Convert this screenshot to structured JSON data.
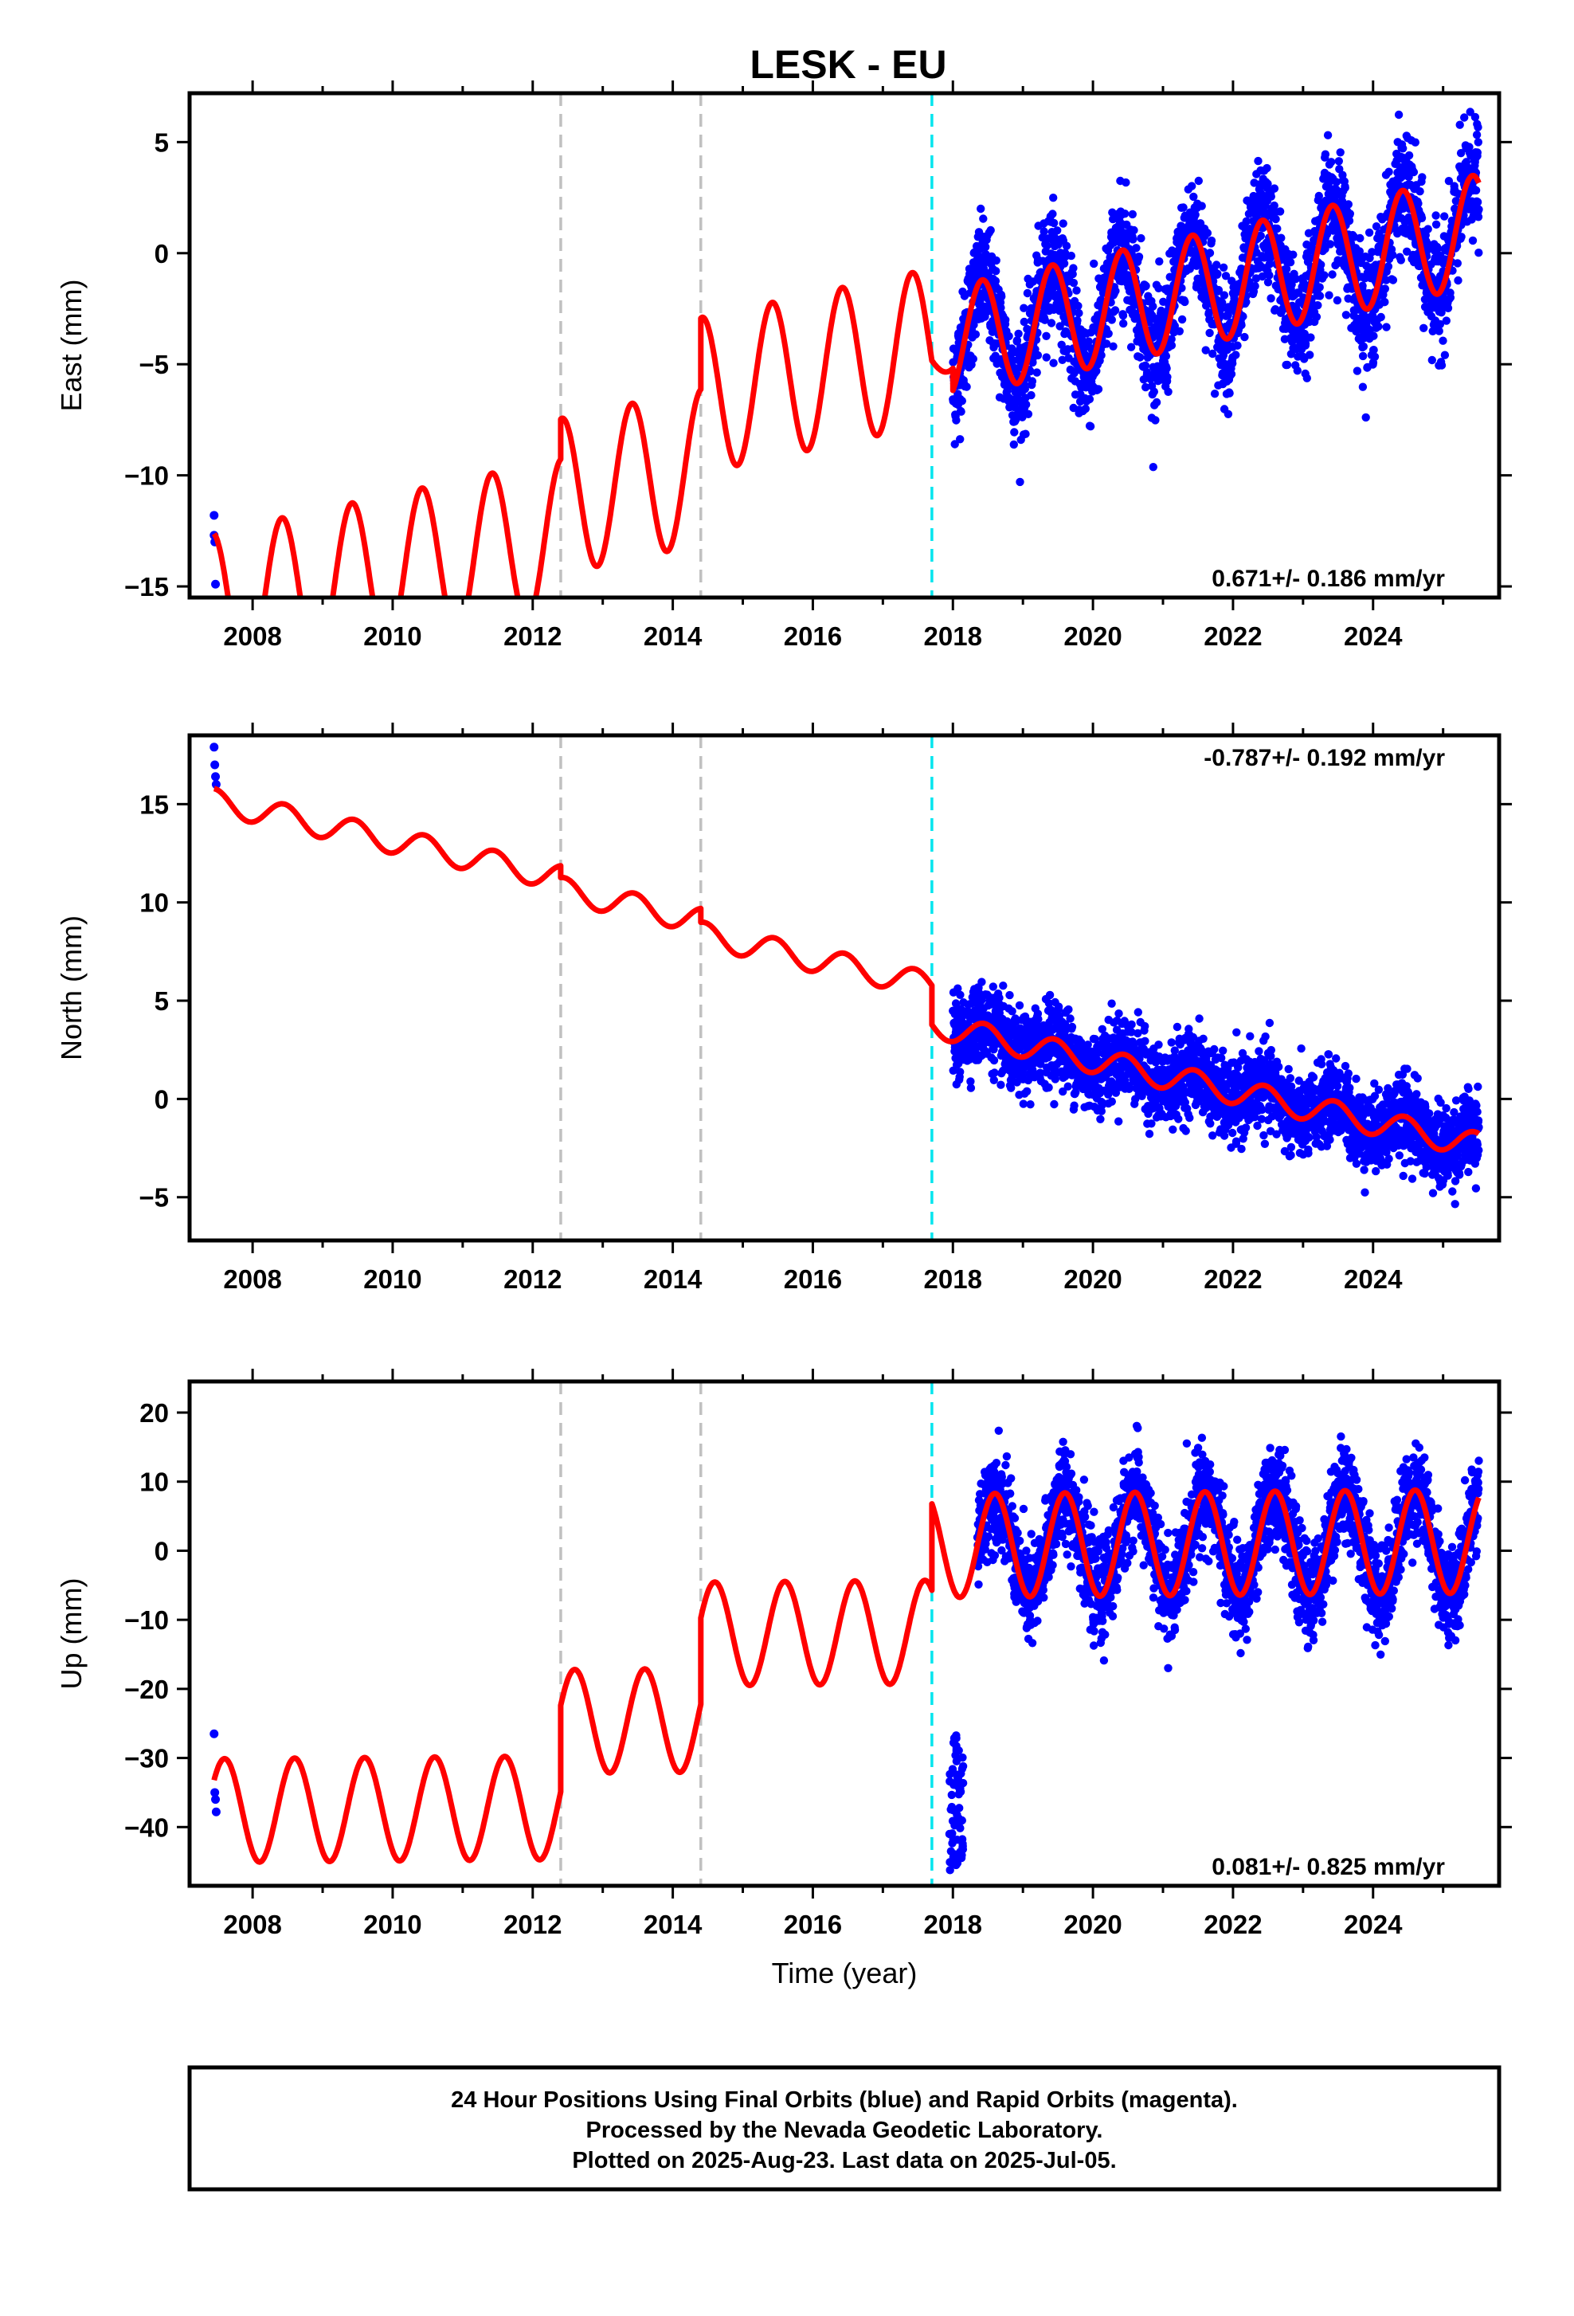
{
  "title": "LESK - EU",
  "colors": {
    "final_orbits": "#0000ff",
    "model": "#ff0000",
    "equipment_change": "#c0c0c0",
    "earthquake": "#00e5ee"
  },
  "footer": {
    "line1": "24 Hour Positions Using Final Orbits (blue) and Rapid Orbits (magenta).",
    "line2": "Processed by the Nevada Geodetic Laboratory.",
    "line3": "Plotted on 2025-Aug-23. Last data on 2025-Jul-05."
  },
  "chart_data": [
    {
      "type": "scatter",
      "component": "east",
      "ylabel": "East (mm)",
      "xlabel": "",
      "xlim": [
        2007.1,
        2025.8
      ],
      "ylim": [
        -15.5,
        7.2
      ],
      "xticks": [
        2008,
        2010,
        2012,
        2014,
        2016,
        2018,
        2020,
        2022,
        2024
      ],
      "yticks": [
        -15,
        -10,
        -5,
        0,
        5
      ],
      "ytick_labels": [
        "−15",
        "−10",
        "−5",
        "0",
        "5"
      ],
      "rate_label": "0.671+/- 0.186 mm/yr",
      "rate_position": "bottom-right",
      "grid": false,
      "vlines": [
        {
          "x": 2012.4,
          "kind": "equipment_change"
        },
        {
          "x": 2014.4,
          "kind": "earthquake_gray"
        },
        {
          "x": 2017.7,
          "kind": "earthquake"
        }
      ],
      "data_range": {
        "start": 2018.0,
        "end": 2025.51
      },
      "early_points": {
        "x": [
          2007.45,
          2007.45,
          2007.46,
          2007.47
        ],
        "y": [
          -11.8,
          -12.7,
          -13.0,
          -14.9
        ]
      },
      "model_segments": [
        {
          "start": 2007.45,
          "end": 2012.4,
          "intercept_2015": -11.0,
          "slope": 0.671,
          "amplitude": 3.5,
          "phase_peak": 0.42
        },
        {
          "start": 2012.4,
          "end": 2014.4,
          "intercept_2015": -9.2,
          "slope": 0.671,
          "amplitude": 3.5,
          "phase_peak": 0.42
        },
        {
          "start": 2014.4,
          "end": 2017.7,
          "intercept_2015": -6.0,
          "slope": 0.671,
          "amplitude": 3.5,
          "phase_peak": 0.42
        },
        {
          "start": 2017.7,
          "end": 2018.0,
          "intercept_2015": -6.5,
          "slope": 0.671,
          "amplitude": 0.8,
          "phase_peak": 0.42
        },
        {
          "start": 2018.0,
          "end": 2025.51,
          "intercept_2015": -6.0,
          "slope": 0.671,
          "amplitude": 2.5,
          "phase_peak": 0.42
        }
      ],
      "scatter_noise": 1.3
    },
    {
      "type": "scatter",
      "component": "north",
      "ylabel": "North (mm)",
      "xlabel": "",
      "xlim": [
        2007.1,
        2025.8
      ],
      "ylim": [
        -7.2,
        18.5
      ],
      "xticks": [
        2008,
        2010,
        2012,
        2014,
        2016,
        2018,
        2020,
        2022,
        2024
      ],
      "yticks": [
        -5,
        0,
        5,
        10,
        15
      ],
      "ytick_labels": [
        "−5",
        "0",
        "5",
        "10",
        "15"
      ],
      "rate_label": "-0.787+/- 0.192 mm/yr",
      "rate_position": "top-right",
      "grid": false,
      "vlines": [
        {
          "x": 2012.4,
          "kind": "equipment_change"
        },
        {
          "x": 2014.4,
          "kind": "earthquake_gray"
        },
        {
          "x": 2017.7,
          "kind": "earthquake"
        }
      ],
      "data_range": {
        "start": 2018.0,
        "end": 2025.51
      },
      "early_points": {
        "x": [
          2007.45,
          2007.46,
          2007.47,
          2007.48
        ],
        "y": [
          17.9,
          17.0,
          16.4,
          16.0
        ]
      },
      "model_segments": [
        {
          "start": 2007.45,
          "end": 2012.4,
          "intercept_2015": 9.2,
          "slope": -0.787,
          "amplitude": 0.65,
          "phase_peak": 0.45
        },
        {
          "start": 2012.4,
          "end": 2014.4,
          "intercept_2015": 8.6,
          "slope": -0.787,
          "amplitude": 0.65,
          "phase_peak": 0.45
        },
        {
          "start": 2014.4,
          "end": 2017.7,
          "intercept_2015": 7.9,
          "slope": -0.787,
          "amplitude": 0.65,
          "phase_peak": 0.45
        },
        {
          "start": 2017.7,
          "end": 2025.51,
          "intercept_2015": 5.9,
          "slope": -0.787,
          "amplitude": 0.65,
          "phase_peak": 0.45
        }
      ],
      "scatter_noise": 1.0
    },
    {
      "type": "scatter",
      "component": "up",
      "ylabel": "Up (mm)",
      "xlabel": "Time (year)",
      "xlim": [
        2007.1,
        2025.8
      ],
      "ylim": [
        -48.5,
        24.5
      ],
      "xticks": [
        2008,
        2010,
        2012,
        2014,
        2016,
        2018,
        2020,
        2022,
        2024
      ],
      "yticks": [
        -40,
        -30,
        -20,
        -10,
        0,
        10,
        20
      ],
      "ytick_labels": [
        "−40",
        "−30",
        "−20",
        "−10",
        "0",
        "10",
        "20"
      ],
      "rate_label": "0.081+/- 0.825 mm/yr",
      "rate_position": "bottom-right",
      "grid": false,
      "vlines": [
        {
          "x": 2012.4,
          "kind": "equipment_change"
        },
        {
          "x": 2014.4,
          "kind": "earthquake_gray"
        },
        {
          "x": 2017.7,
          "kind": "earthquake"
        }
      ],
      "data_range": {
        "start": 2018.35,
        "end": 2025.51
      },
      "early_points": {
        "x": [
          2007.45,
          2007.46,
          2007.47,
          2007.48
        ],
        "y": [
          -26.5,
          -35.0,
          -36.0,
          -37.8
        ]
      },
      "cluster_points": {
        "x_start": 2017.95,
        "x_end": 2018.15,
        "y_min": -47.0,
        "y_max": -26.0
      },
      "model_segments": [
        {
          "start": 2007.45,
          "end": 2012.4,
          "intercept_2015": -37.0,
          "slope": 0.081,
          "amplitude": 7.5,
          "phase_peak": 0.6
        },
        {
          "start": 2012.4,
          "end": 2014.4,
          "intercept_2015": -24.5,
          "slope": 0.081,
          "amplitude": 7.5,
          "phase_peak": 0.6
        },
        {
          "start": 2014.4,
          "end": 2017.7,
          "intercept_2015": -12.0,
          "slope": 0.081,
          "amplitude": 7.5,
          "phase_peak": 0.6
        },
        {
          "start": 2017.7,
          "end": 2025.51,
          "intercept_2015": 0.5,
          "slope": 0.081,
          "amplitude": 7.5,
          "phase_peak": 0.6
        }
      ],
      "scatter_noise": 3.5
    }
  ]
}
